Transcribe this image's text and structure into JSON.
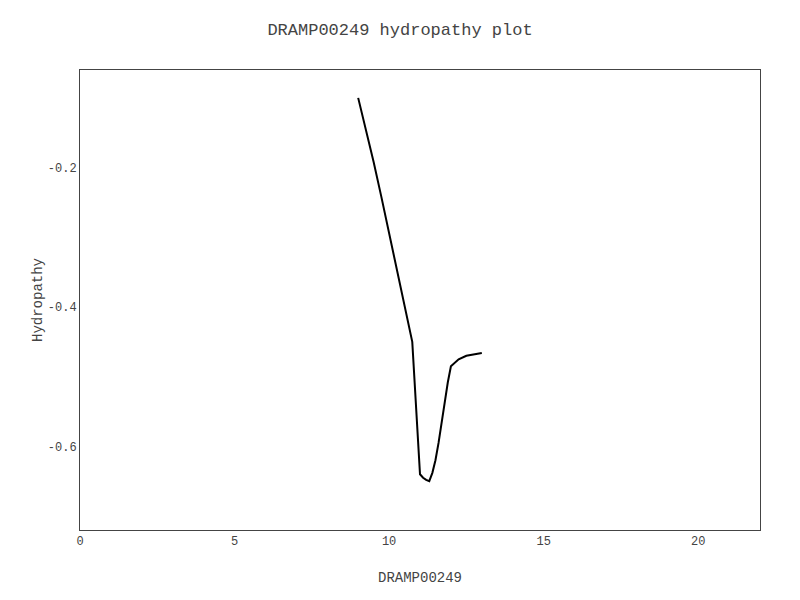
{
  "chart_data": {
    "type": "line",
    "title": "DRAMP00249 hydropathy plot",
    "x_label": "DRAMP00249",
    "y_label": "Hydropathy",
    "x": [
      9.0,
      9.25,
      9.5,
      9.75,
      10.0,
      10.25,
      10.5,
      10.75,
      11.0,
      11.1,
      11.2,
      11.3,
      11.4,
      11.5,
      11.6,
      11.7,
      11.8,
      11.9,
      12.0,
      12.25,
      12.5,
      12.75,
      13.0
    ],
    "values": [
      -0.1,
      -0.145,
      -0.192,
      -0.242,
      -0.295,
      -0.348,
      -0.4,
      -0.45,
      -0.64,
      -0.645,
      -0.648,
      -0.65,
      -0.638,
      -0.62,
      -0.595,
      -0.565,
      -0.535,
      -0.508,
      -0.485,
      -0.475,
      -0.47,
      -0.468,
      -0.466
    ],
    "color": "#000000",
    "xlim": [
      0,
      22
    ],
    "xticks": [
      0,
      5,
      10,
      15,
      20
    ],
    "ylim": [
      -0.72,
      -0.06
    ],
    "yticks": [
      -0.6,
      -0.4,
      -0.2
    ],
    "grid": false
  }
}
